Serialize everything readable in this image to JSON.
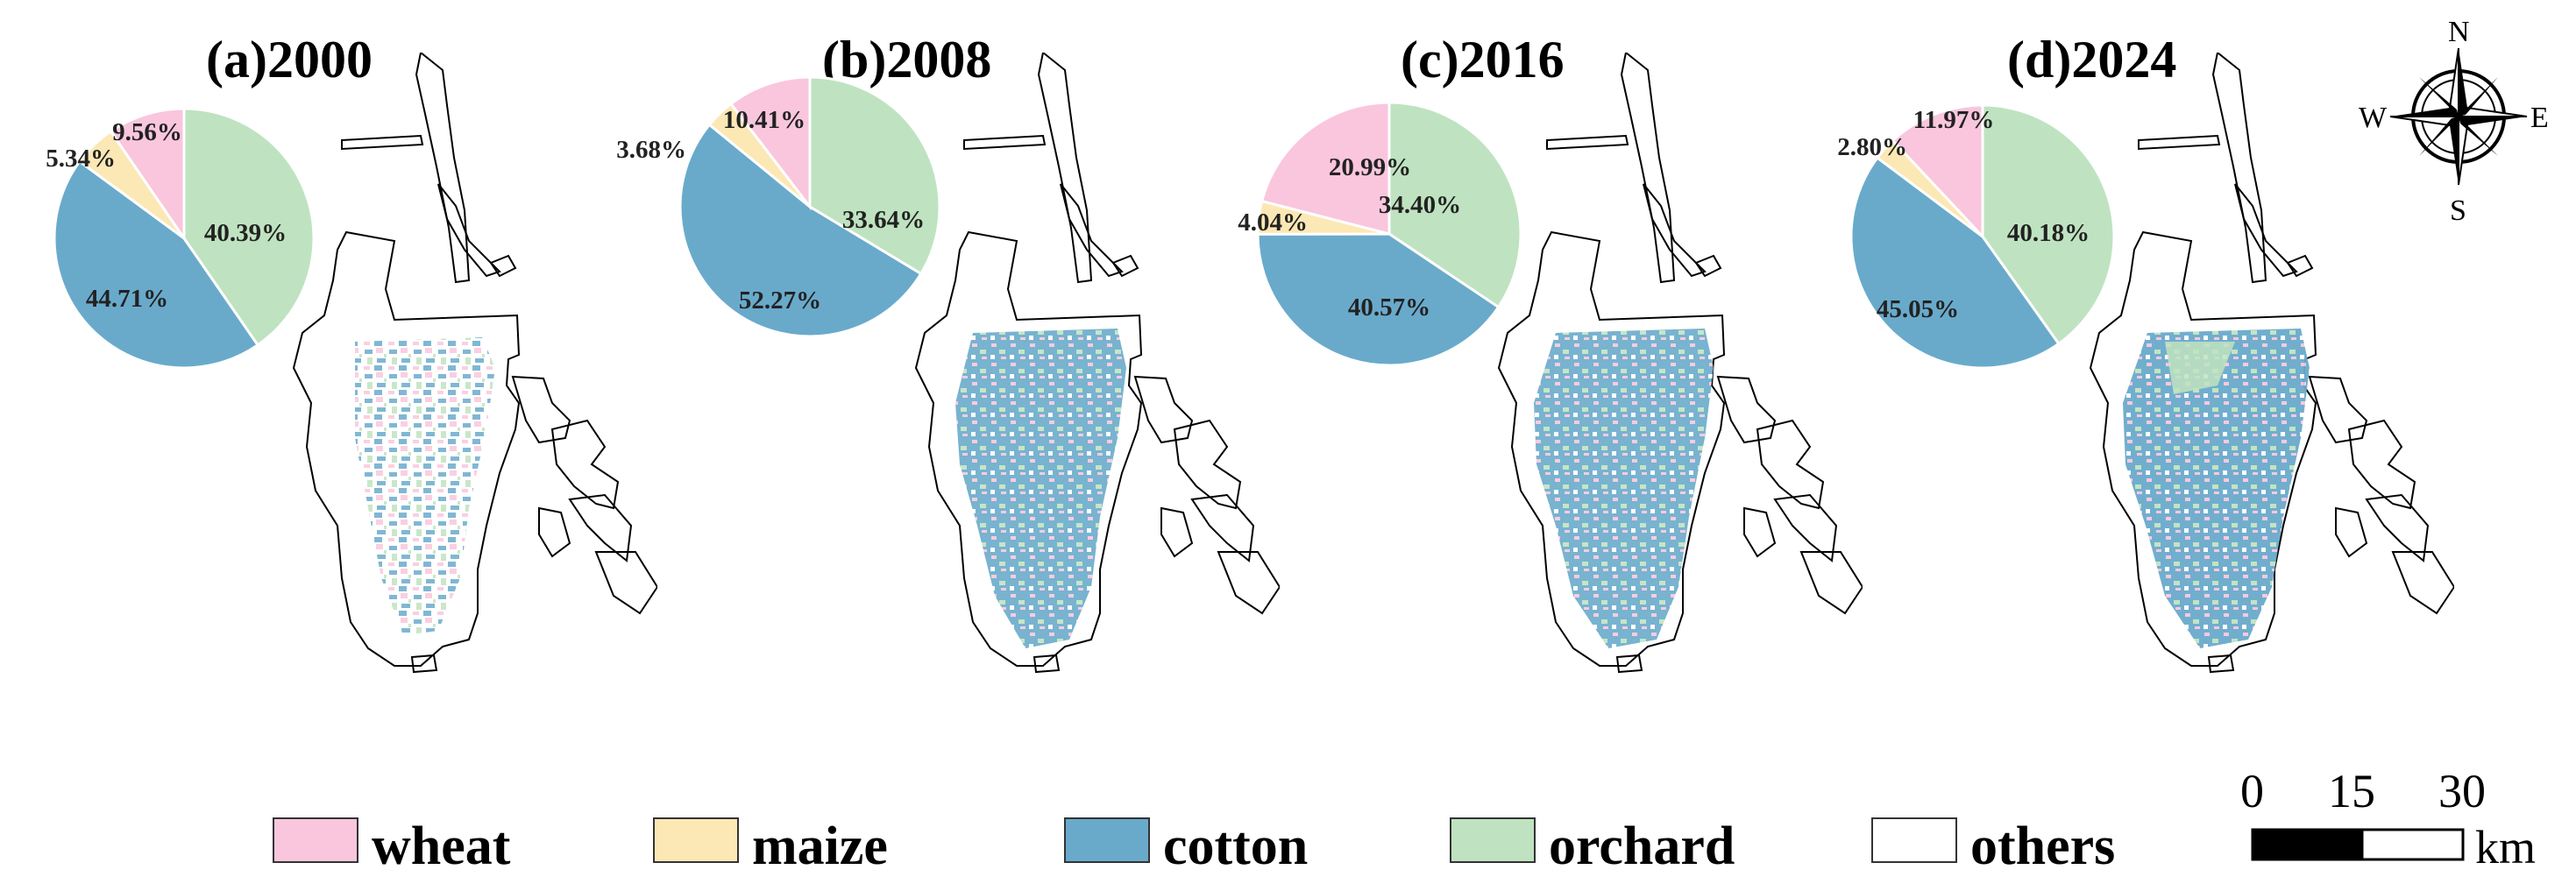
{
  "colors": {
    "wheat": "#f9c6dd",
    "maize": "#fce8b4",
    "cotton": "#69aacb",
    "orchard": "#bfe3c0",
    "others": "#ffffff"
  },
  "panels": [
    {
      "title": "(a)2000",
      "chart_data": {
        "type": "pie",
        "categories": [
          "orchard",
          "cotton",
          "maize",
          "wheat"
        ],
        "values": [
          40.39,
          44.71,
          5.34,
          9.56
        ],
        "labels": [
          "40.39%",
          "44.71%",
          "5.34%",
          "9.56%"
        ]
      }
    },
    {
      "title": "(b)2008",
      "chart_data": {
        "type": "pie",
        "categories": [
          "orchard",
          "cotton",
          "maize",
          "wheat"
        ],
        "values": [
          33.64,
          52.27,
          3.68,
          10.41
        ],
        "labels": [
          "33.64%",
          "52.27%",
          "3.68%",
          "10.41%"
        ]
      }
    },
    {
      "title": "(c)2016",
      "chart_data": {
        "type": "pie",
        "categories": [
          "orchard",
          "cotton",
          "maize",
          "wheat"
        ],
        "values": [
          34.4,
          40.57,
          4.04,
          20.99
        ],
        "labels": [
          "34.40%",
          "40.57%",
          "4.04%",
          "20.99%"
        ]
      }
    },
    {
      "title": "(d)2024",
      "chart_data": {
        "type": "pie",
        "categories": [
          "orchard",
          "cotton",
          "maize",
          "wheat"
        ],
        "values": [
          40.18,
          45.05,
          2.8,
          11.97
        ],
        "labels": [
          "40.18%",
          "45.05%",
          "2.80%",
          "11.97%"
        ]
      }
    }
  ],
  "legend": [
    {
      "key": "wheat",
      "label": "wheat"
    },
    {
      "key": "maize",
      "label": "maize"
    },
    {
      "key": "cotton",
      "label": "cotton"
    },
    {
      "key": "orchard",
      "label": "orchard"
    },
    {
      "key": "others",
      "label": "others"
    }
  ],
  "compass": {
    "n": "N",
    "s": "S",
    "e": "E",
    "w": "W"
  },
  "scalebar": {
    "ticks": [
      "0",
      "15",
      "30"
    ],
    "unit": "km"
  }
}
